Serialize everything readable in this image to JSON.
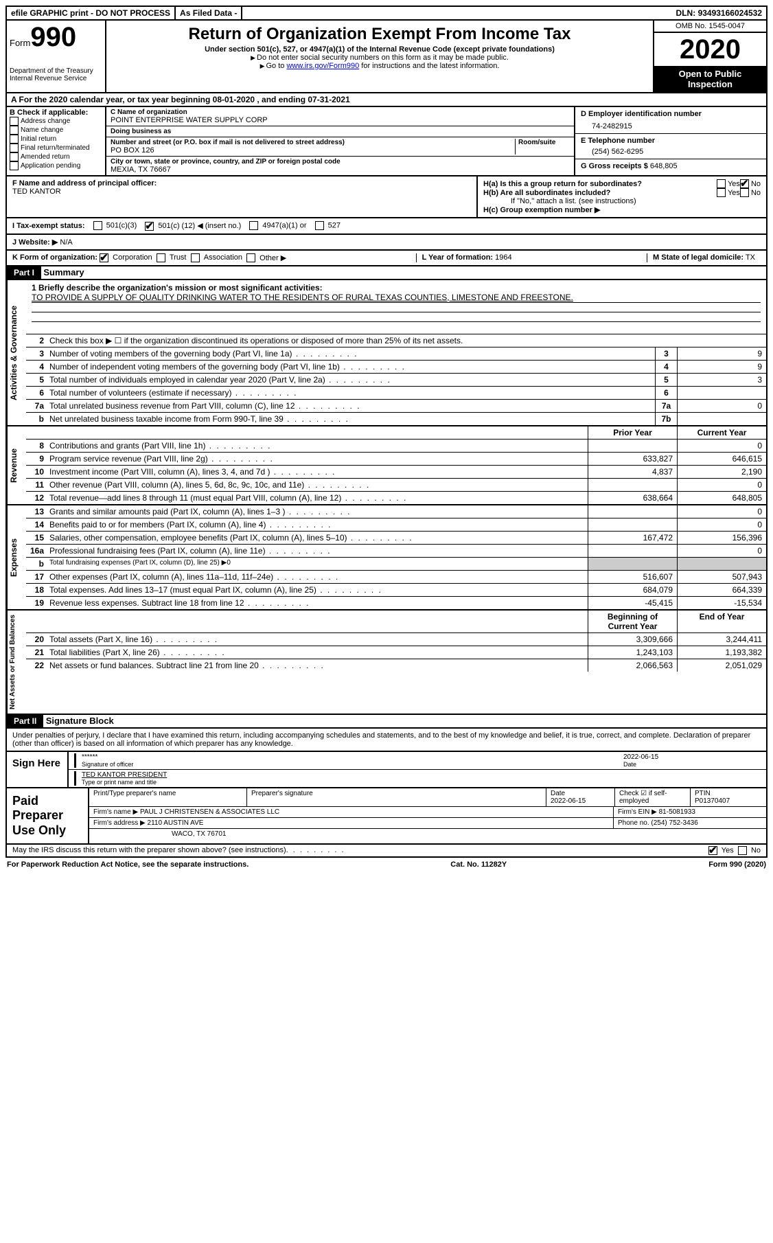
{
  "topbar": {
    "efile": "efile GRAPHIC print - DO NOT PROCESS",
    "asfiled": "As Filed Data -",
    "dln_label": "DLN:",
    "dln": "93493166024532"
  },
  "header": {
    "form_prefix": "Form",
    "form_no": "990",
    "dept": "Department of the Treasury\nInternal Revenue Service",
    "title": "Return of Organization Exempt From Income Tax",
    "sub1": "Under section 501(c), 527, or 4947(a)(1) of the Internal Revenue Code (except private foundations)",
    "sub2": "Do not enter social security numbers on this form as it may be made public.",
    "sub3_pre": "Go to ",
    "sub3_link": "www.irs.gov/Form990",
    "sub3_post": " for instructions and the latest information.",
    "omb": "OMB No. 1545-0047",
    "year": "2020",
    "otp": "Open to Public Inspection"
  },
  "line_a": "A  For the 2020 calendar year, or tax year beginning 08-01-2020   , and ending 07-31-2021",
  "col_b": {
    "title": "B Check if applicable:",
    "opts": [
      "Address change",
      "Name change",
      "Initial return",
      "Final return/terminated",
      "Amended return",
      "Application pending"
    ]
  },
  "col_c": {
    "name_label": "C Name of organization",
    "name": "POINT ENTERPRISE WATER SUPPLY CORP",
    "dba_label": "Doing business as",
    "street_label": "Number and street (or P.O. box if mail is not delivered to street address)",
    "room_label": "Room/suite",
    "street": "PO BOX 126",
    "city_label": "City or town, state or province, country, and ZIP or foreign postal code",
    "city": "MEXIA, TX  76667"
  },
  "col_d": {
    "d_label": "D Employer identification number",
    "d_val": "74-2482915",
    "e_label": "E Telephone number",
    "e_val": "(254) 562-6295",
    "g_label": "G Gross receipts $",
    "g_val": "648,805"
  },
  "fh": {
    "f_label": "F  Name and address of principal officer:",
    "f_val": "TED KANTOR",
    "ha": "H(a) Is this a group return for subordinates?",
    "hb": "H(b) Are all subordinates included?",
    "hb_note": "If \"No,\" attach a list. (see instructions)",
    "hc": "H(c) Group exemption number ▶",
    "yes": "Yes",
    "no": "No"
  },
  "row_i": {
    "label": "I  Tax-exempt status:",
    "o1": "501(c)(3)",
    "o2_pre": "501(c) (",
    "o2_num": "12",
    "o2_post": ") ◀ (insert no.)",
    "o3": "4947(a)(1) or",
    "o4": "527"
  },
  "row_j": {
    "label": "J  Website: ▶",
    "val": "N/A"
  },
  "row_k": {
    "label": "K Form of organization:",
    "corp": "Corporation",
    "trust": "Trust",
    "assoc": "Association",
    "other": "Other ▶",
    "l_label": "L Year of formation:",
    "l_val": "1964",
    "m_label": "M State of legal domicile:",
    "m_val": "TX"
  },
  "part1": {
    "header": "Part I",
    "title": "Summary"
  },
  "mission": {
    "label": "1 Briefly describe the organization's mission or most significant activities:",
    "text": "TO PROVIDE A SUPPLY OF QUALITY DRINKING WATER TO THE RESIDENTS OF RURAL TEXAS COUNTIES, LIMESTONE AND FREESTONE."
  },
  "gov": {
    "l2": "Check this box ▶ ☐ if the organization discontinued its operations or disposed of more than 25% of its net assets.",
    "rows": [
      {
        "n": "3",
        "d": "Number of voting members of the governing body (Part VI, line 1a)",
        "box": "3",
        "v": "9"
      },
      {
        "n": "4",
        "d": "Number of independent voting members of the governing body (Part VI, line 1b)",
        "box": "4",
        "v": "9"
      },
      {
        "n": "5",
        "d": "Total number of individuals employed in calendar year 2020 (Part V, line 2a)",
        "box": "5",
        "v": "3"
      },
      {
        "n": "6",
        "d": "Total number of volunteers (estimate if necessary)",
        "box": "6",
        "v": ""
      },
      {
        "n": "7a",
        "d": "Total unrelated business revenue from Part VIII, column (C), line 12",
        "box": "7a",
        "v": "0"
      },
      {
        "n": "b",
        "d": "Net unrelated business taxable income from Form 990-T, line 39",
        "box": "7b",
        "v": ""
      }
    ]
  },
  "rev": {
    "head_prior": "Prior Year",
    "head_curr": "Current Year",
    "rows": [
      {
        "n": "8",
        "d": "Contributions and grants (Part VIII, line 1h)",
        "p": "",
        "c": "0"
      },
      {
        "n": "9",
        "d": "Program service revenue (Part VIII, line 2g)",
        "p": "633,827",
        "c": "646,615"
      },
      {
        "n": "10",
        "d": "Investment income (Part VIII, column (A), lines 3, 4, and 7d )",
        "p": "4,837",
        "c": "2,190"
      },
      {
        "n": "11",
        "d": "Other revenue (Part VIII, column (A), lines 5, 6d, 8c, 9c, 10c, and 11e)",
        "p": "",
        "c": "0"
      },
      {
        "n": "12",
        "d": "Total revenue—add lines 8 through 11 (must equal Part VIII, column (A), line 12)",
        "p": "638,664",
        "c": "648,805"
      }
    ]
  },
  "exp": {
    "rows": [
      {
        "n": "13",
        "d": "Grants and similar amounts paid (Part IX, column (A), lines 1–3 )",
        "p": "",
        "c": "0"
      },
      {
        "n": "14",
        "d": "Benefits paid to or for members (Part IX, column (A), line 4)",
        "p": "",
        "c": "0"
      },
      {
        "n": "15",
        "d": "Salaries, other compensation, employee benefits (Part IX, column (A), lines 5–10)",
        "p": "167,472",
        "c": "156,396"
      },
      {
        "n": "16a",
        "d": "Professional fundraising fees (Part IX, column (A), line 11e)",
        "p": "",
        "c": "0"
      },
      {
        "n": "b",
        "d": "Total fundraising expenses (Part IX, column (D), line 25) ▶0",
        "p": "-",
        "c": "-"
      },
      {
        "n": "17",
        "d": "Other expenses (Part IX, column (A), lines 11a–11d, 11f–24e)",
        "p": "516,607",
        "c": "507,943"
      },
      {
        "n": "18",
        "d": "Total expenses. Add lines 13–17 (must equal Part IX, column (A), line 25)",
        "p": "684,079",
        "c": "664,339"
      },
      {
        "n": "19",
        "d": "Revenue less expenses. Subtract line 18 from line 12",
        "p": "-45,415",
        "c": "-15,534"
      }
    ]
  },
  "net": {
    "head_beg": "Beginning of Current Year",
    "head_end": "End of Year",
    "rows": [
      {
        "n": "20",
        "d": "Total assets (Part X, line 16)",
        "p": "3,309,666",
        "c": "3,244,411"
      },
      {
        "n": "21",
        "d": "Total liabilities (Part X, line 26)",
        "p": "1,243,103",
        "c": "1,193,382"
      },
      {
        "n": "22",
        "d": "Net assets or fund balances. Subtract line 21 from line 20",
        "p": "2,066,563",
        "c": "2,051,029"
      }
    ]
  },
  "part2": {
    "header": "Part II",
    "title": "Signature Block"
  },
  "sig": {
    "perjury": "Under penalties of perjury, I declare that I have examined this return, including accompanying schedules and statements, and to the best of my knowledge and belief, it is true, correct, and complete. Declaration of preparer (other than officer) is based on all information of which preparer has any knowledge.",
    "sign_here": "Sign Here",
    "stars": "******",
    "sig_of": "Signature of officer",
    "date": "2022-06-15",
    "date_lbl": "Date",
    "name": "TED KANTOR PRESIDENT",
    "name_lbl": "Type or print name and title"
  },
  "paid": {
    "title": "Paid Preparer Use Only",
    "h_print": "Print/Type preparer's name",
    "h_sig": "Preparer's signature",
    "h_date": "Date",
    "date": "2022-06-15",
    "h_check": "Check ☑ if self-employed",
    "h_ptin": "PTIN",
    "ptin": "P01370407",
    "firm_name_lbl": "Firm's name  ▶",
    "firm_name": "PAUL J CHRISTENSEN & ASSOCIATES LLC",
    "firm_ein_lbl": "Firm's EIN ▶",
    "firm_ein": "81-5081933",
    "firm_addr_lbl": "Firm's address ▶",
    "firm_addr1": "2110 AUSTIN AVE",
    "firm_addr2": "WACO, TX  76701",
    "phone_lbl": "Phone no.",
    "phone": "(254) 752-3436"
  },
  "bottom": {
    "q": "May the IRS discuss this return with the preparer shown above? (see instructions)",
    "yes": "Yes",
    "no": "No"
  },
  "footer": {
    "left": "For Paperwork Reduction Act Notice, see the separate instructions.",
    "center": "Cat. No. 11282Y",
    "right_pre": "Form ",
    "right_bold": "990",
    "right_post": " (2020)"
  },
  "sidelabels": {
    "gov": "Activities & Governance",
    "rev": "Revenue",
    "exp": "Expenses",
    "net": "Net Assets or Fund Balances"
  }
}
